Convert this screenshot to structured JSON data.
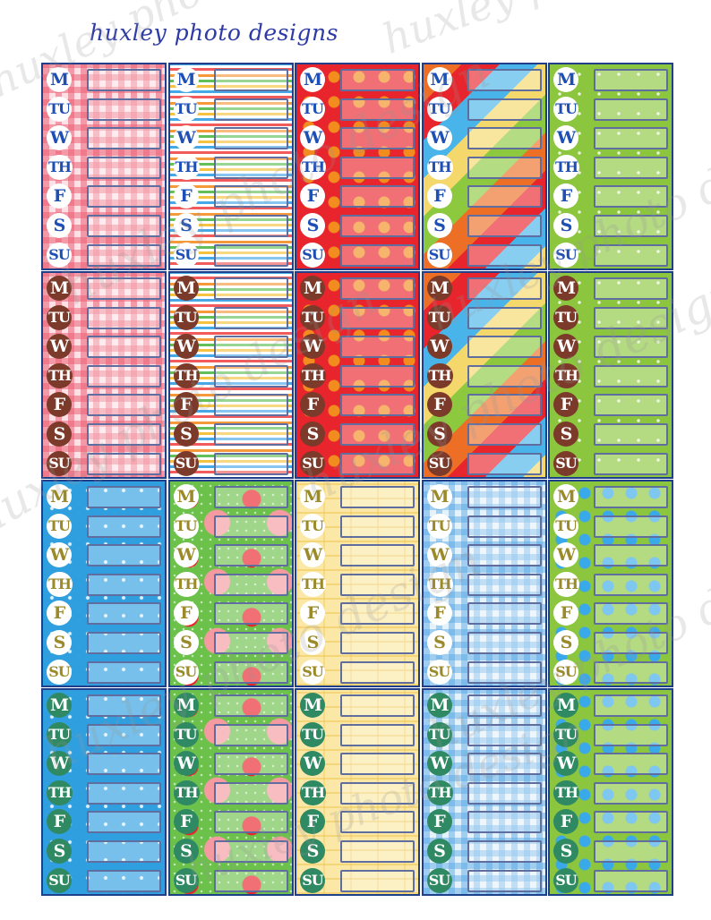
{
  "brand": "huxley photo designs",
  "watermark": "huxley photo design",
  "days": [
    "M",
    "TU",
    "W",
    "TH",
    "F",
    "S",
    "SU"
  ],
  "columns": [
    {
      "pattern": "gingham-red"
    },
    {
      "pattern": "stripes"
    },
    {
      "pattern": "polka-red"
    },
    {
      "pattern": "diagonal-rainbow"
    },
    {
      "pattern": "green-star"
    }
  ],
  "column_sets_row3": [
    {
      "pattern": "blue-star"
    },
    {
      "pattern": "poppy"
    },
    {
      "pattern": "yellow-brick"
    },
    {
      "pattern": "gingham-blue"
    },
    {
      "pattern": "green-blue-dots"
    }
  ],
  "badge_styles": [
    {
      "row": 1,
      "badge_bg": "#ffffff",
      "badge_text": "#1e4fb5"
    },
    {
      "row": 2,
      "badge_bg": "#7b3a2a",
      "badge_text": "#ffffff"
    },
    {
      "row": 3,
      "badge_bg": "#ffffff",
      "badge_text": "#9a8a2a"
    },
    {
      "row": 4,
      "badge_bg": "#2f8a63",
      "badge_text": "#ffffff"
    }
  ],
  "colors": {
    "frame": "#1f3f8a",
    "brand": "#2e3aa6"
  }
}
